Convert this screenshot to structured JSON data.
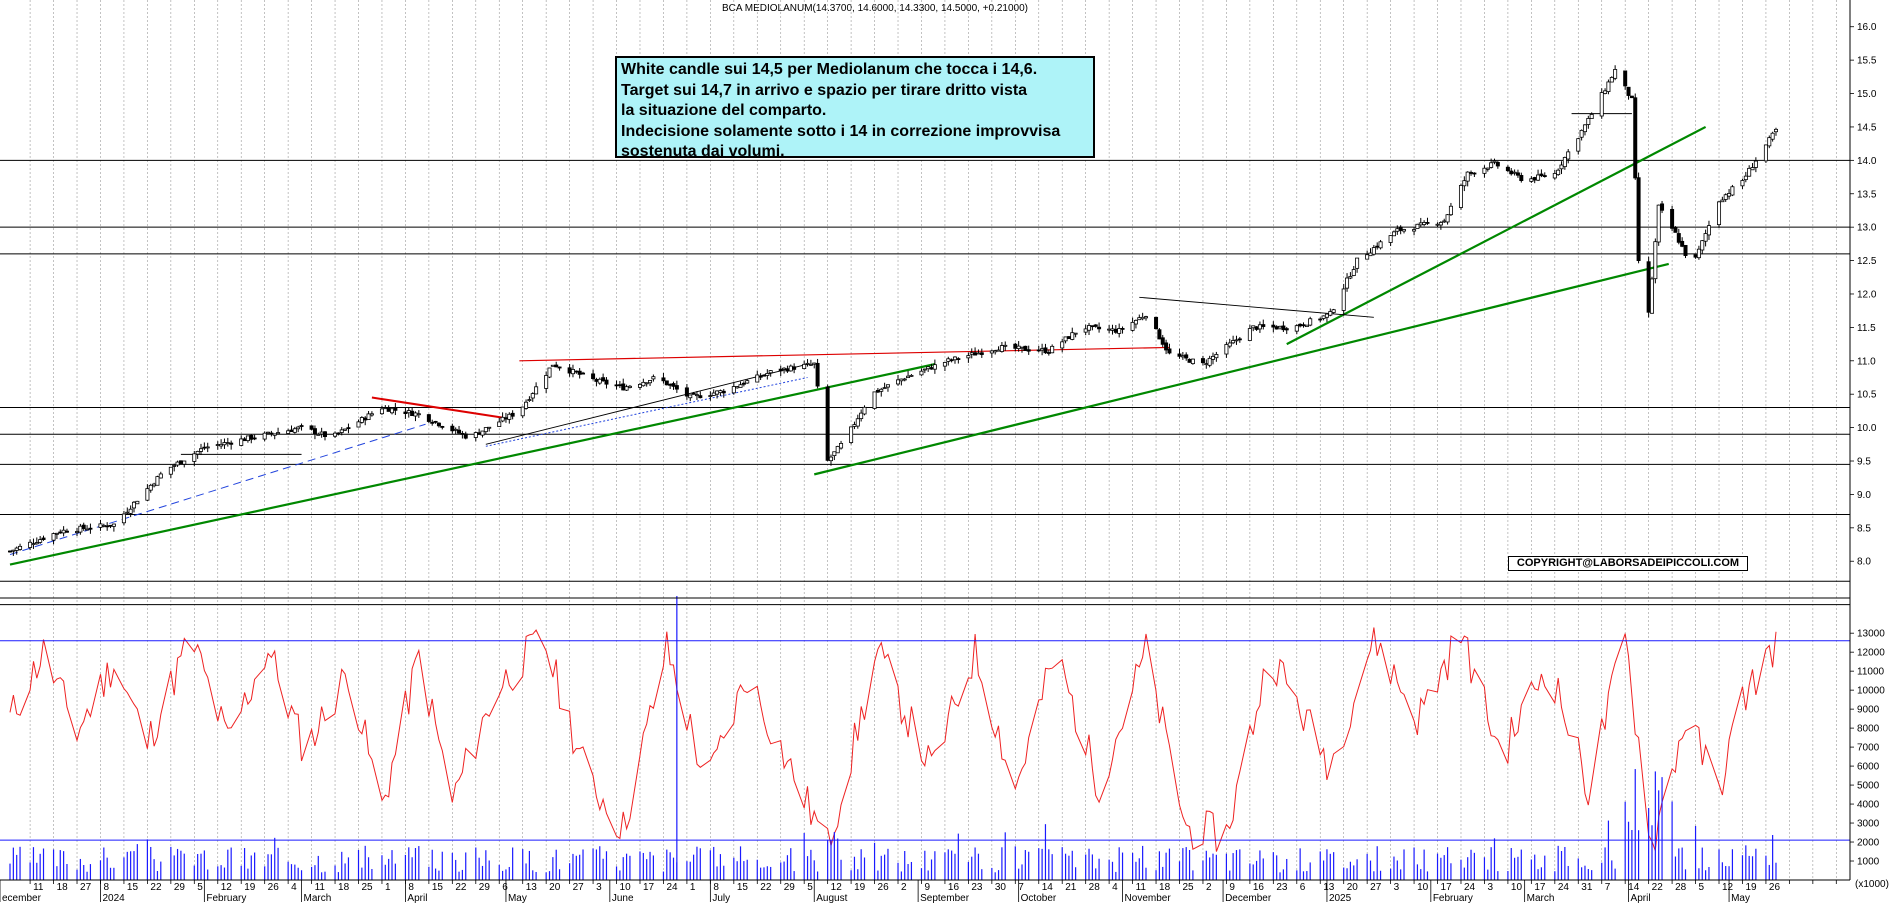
{
  "chart_data": {
    "type": "candlestick",
    "title": "BCA MEDIOLANUM(14.3700, 14.6000, 14.3300, 14.5000, +0.21000)",
    "annotation_lines": [
      "White candle sui 14,5 per Mediolanum che tocca i 14,6.",
      "Target sui 14,7 in arrivo e spazio per tirare dritto vista",
      "la situazione del comparto.",
      "Indecisione solamente sotto i 14 in correzione improvvisa",
      "sostenuta dai volumi."
    ],
    "copyright": "COPYRIGHT@LABORSADEIPICCOLI.COM",
    "price_axis": {
      "ylim": [
        7.3,
        16.4
      ],
      "ticks": [
        "8.0",
        "8.5",
        "9.0",
        "9.5",
        "10.0",
        "10.5",
        "11.0",
        "11.5",
        "12.0",
        "12.5",
        "13.0",
        "13.5",
        "14.0",
        "14.5",
        "15.0",
        "15.5",
        "16.0"
      ]
    },
    "volume_axis": {
      "ylim": [
        0,
        13800
      ],
      "ticks": [
        "1000",
        "2000",
        "3000",
        "4000",
        "5000",
        "6000",
        "7000",
        "8000",
        "9000",
        "10000",
        "11000",
        "12000",
        "13000"
      ],
      "unit_label": "(x1000)"
    },
    "horizontal_levels": [
      8.7,
      9.45,
      9.9,
      10.3,
      12.6,
      13.0,
      14.0
    ],
    "date_axis": {
      "day_ticks": [
        "11",
        "18",
        "27",
        "8",
        "15",
        "22",
        "29",
        "5",
        "12",
        "19",
        "26",
        "4",
        "11",
        "18",
        "25",
        "1",
        "8",
        "15",
        "22",
        "29",
        "6",
        "13",
        "20",
        "27",
        "3",
        "10",
        "17",
        "24",
        "1",
        "8",
        "15",
        "22",
        "29",
        "5",
        "12",
        "19",
        "26",
        "2",
        "9",
        "16",
        "23",
        "30",
        "7",
        "14",
        "21",
        "28",
        "4",
        "11",
        "18",
        "25",
        "2",
        "9",
        "16",
        "23",
        "6",
        "13",
        "20",
        "27",
        "3",
        "10",
        "17",
        "24",
        "3",
        "10",
        "17",
        "24",
        "31",
        "7",
        "14",
        "22",
        "28",
        "5",
        "12",
        "19",
        "26"
      ],
      "month_labels": [
        "ecember",
        "2024",
        "February",
        "March",
        "April",
        "May",
        "June",
        "July",
        "August",
        "September",
        "October",
        "November",
        "December",
        "2025",
        "February",
        "March",
        "April",
        "May"
      ]
    },
    "price_series": {
      "name": "",
      "anchors": [
        [
          "2023-12-05",
          8.15
        ],
        [
          "2023-12-20",
          8.45
        ],
        [
          "2024-01-05",
          8.55
        ],
        [
          "2024-01-20",
          9.35
        ],
        [
          "2024-02-01",
          9.7
        ],
        [
          "2024-02-15",
          9.85
        ],
        [
          "2024-03-01",
          10.0
        ],
        [
          "2024-03-10",
          9.85
        ],
        [
          "2024-03-25",
          10.3
        ],
        [
          "2024-04-05",
          10.2
        ],
        [
          "2024-04-20",
          9.85
        ],
        [
          "2024-05-05",
          10.25
        ],
        [
          "2024-05-15",
          10.95
        ],
        [
          "2024-05-28",
          10.7
        ],
        [
          "2024-06-05",
          10.6
        ],
        [
          "2024-06-15",
          10.75
        ],
        [
          "2024-06-25",
          10.45
        ],
        [
          "2024-07-05",
          10.55
        ],
        [
          "2024-07-20",
          10.85
        ],
        [
          "2024-08-01",
          10.95
        ],
        [
          "2024-08-05",
          9.5
        ],
        [
          "2024-08-10",
          9.8
        ],
        [
          "2024-08-18",
          10.5
        ],
        [
          "2024-08-28",
          10.75
        ],
        [
          "2024-09-10",
          11.0
        ],
        [
          "2024-09-25",
          11.2
        ],
        [
          "2024-10-10",
          11.15
        ],
        [
          "2024-10-20",
          11.5
        ],
        [
          "2024-10-31",
          11.45
        ],
        [
          "2024-11-08",
          11.7
        ],
        [
          "2024-11-15",
          11.1
        ],
        [
          "2024-11-25",
          10.95
        ],
        [
          "2024-12-10",
          11.5
        ],
        [
          "2024-12-22",
          11.5
        ],
        [
          "2025-01-02",
          11.7
        ],
        [
          "2025-01-10",
          12.5
        ],
        [
          "2025-01-22",
          12.95
        ],
        [
          "2025-02-05",
          13.1
        ],
        [
          "2025-02-12",
          13.8
        ],
        [
          "2025-02-20",
          13.95
        ],
        [
          "2025-03-01",
          13.7
        ],
        [
          "2025-03-10",
          13.8
        ],
        [
          "2025-03-20",
          14.6
        ],
        [
          "2025-03-28",
          15.35
        ],
        [
          "2025-04-02",
          14.9
        ],
        [
          "2025-04-04",
          12.5
        ],
        [
          "2025-04-07",
          11.7
        ],
        [
          "2025-04-10",
          13.3
        ],
        [
          "2025-04-15",
          12.9
        ],
        [
          "2025-04-20",
          12.4
        ],
        [
          "2025-04-28",
          13.4
        ],
        [
          "2025-05-05",
          13.7
        ],
        [
          "2025-05-15",
          14.45
        ]
      ]
    },
    "oscillator_series": {
      "name": "",
      "anchors": [
        [
          "2023-12-05",
          8500
        ],
        [
          "2023-12-15",
          12000
        ],
        [
          "2023-12-25",
          7800
        ],
        [
          "2024-01-05",
          11500
        ],
        [
          "2024-01-15",
          7200
        ],
        [
          "2024-01-28",
          12800
        ],
        [
          "2024-02-08",
          7300
        ],
        [
          "2024-02-20",
          12200
        ],
        [
          "2024-03-02",
          6800
        ],
        [
          "2024-03-15",
          11000
        ],
        [
          "2024-03-25",
          3800
        ],
        [
          "2024-04-05",
          11800
        ],
        [
          "2024-04-15",
          4200
        ],
        [
          "2024-04-28",
          10000
        ],
        [
          "2024-05-12",
          12800
        ],
        [
          "2024-05-25",
          5500
        ],
        [
          "2024-06-05",
          2700
        ],
        [
          "2024-06-18",
          12200
        ],
        [
          "2024-06-30",
          5000
        ],
        [
          "2024-07-12",
          10800
        ],
        [
          "2024-07-25",
          5800
        ],
        [
          "2024-08-05",
          1800
        ],
        [
          "2024-08-20",
          12000
        ],
        [
          "2024-09-05",
          5800
        ],
        [
          "2024-09-18",
          12000
        ],
        [
          "2024-09-30",
          4800
        ],
        [
          "2024-10-12",
          12000
        ],
        [
          "2024-10-25",
          5000
        ],
        [
          "2024-11-08",
          12000
        ],
        [
          "2024-11-20",
          2700
        ],
        [
          "2024-12-02",
          2400
        ],
        [
          "2024-12-15",
          12000
        ],
        [
          "2025-01-02",
          6000
        ],
        [
          "2025-01-15",
          12800
        ],
        [
          "2025-01-28",
          8500
        ],
        [
          "2025-02-10",
          13000
        ],
        [
          "2025-02-22",
          6500
        ],
        [
          "2025-03-08",
          11500
        ],
        [
          "2025-03-20",
          4800
        ],
        [
          "2025-03-31",
          12700
        ],
        [
          "2025-04-08",
          1800
        ],
        [
          "2025-04-18",
          8500
        ],
        [
          "2025-04-28",
          4800
        ],
        [
          "2025-05-05",
          9500
        ],
        [
          "2025-05-15",
          12500
        ]
      ]
    },
    "volume_bars_note": ""
  }
}
